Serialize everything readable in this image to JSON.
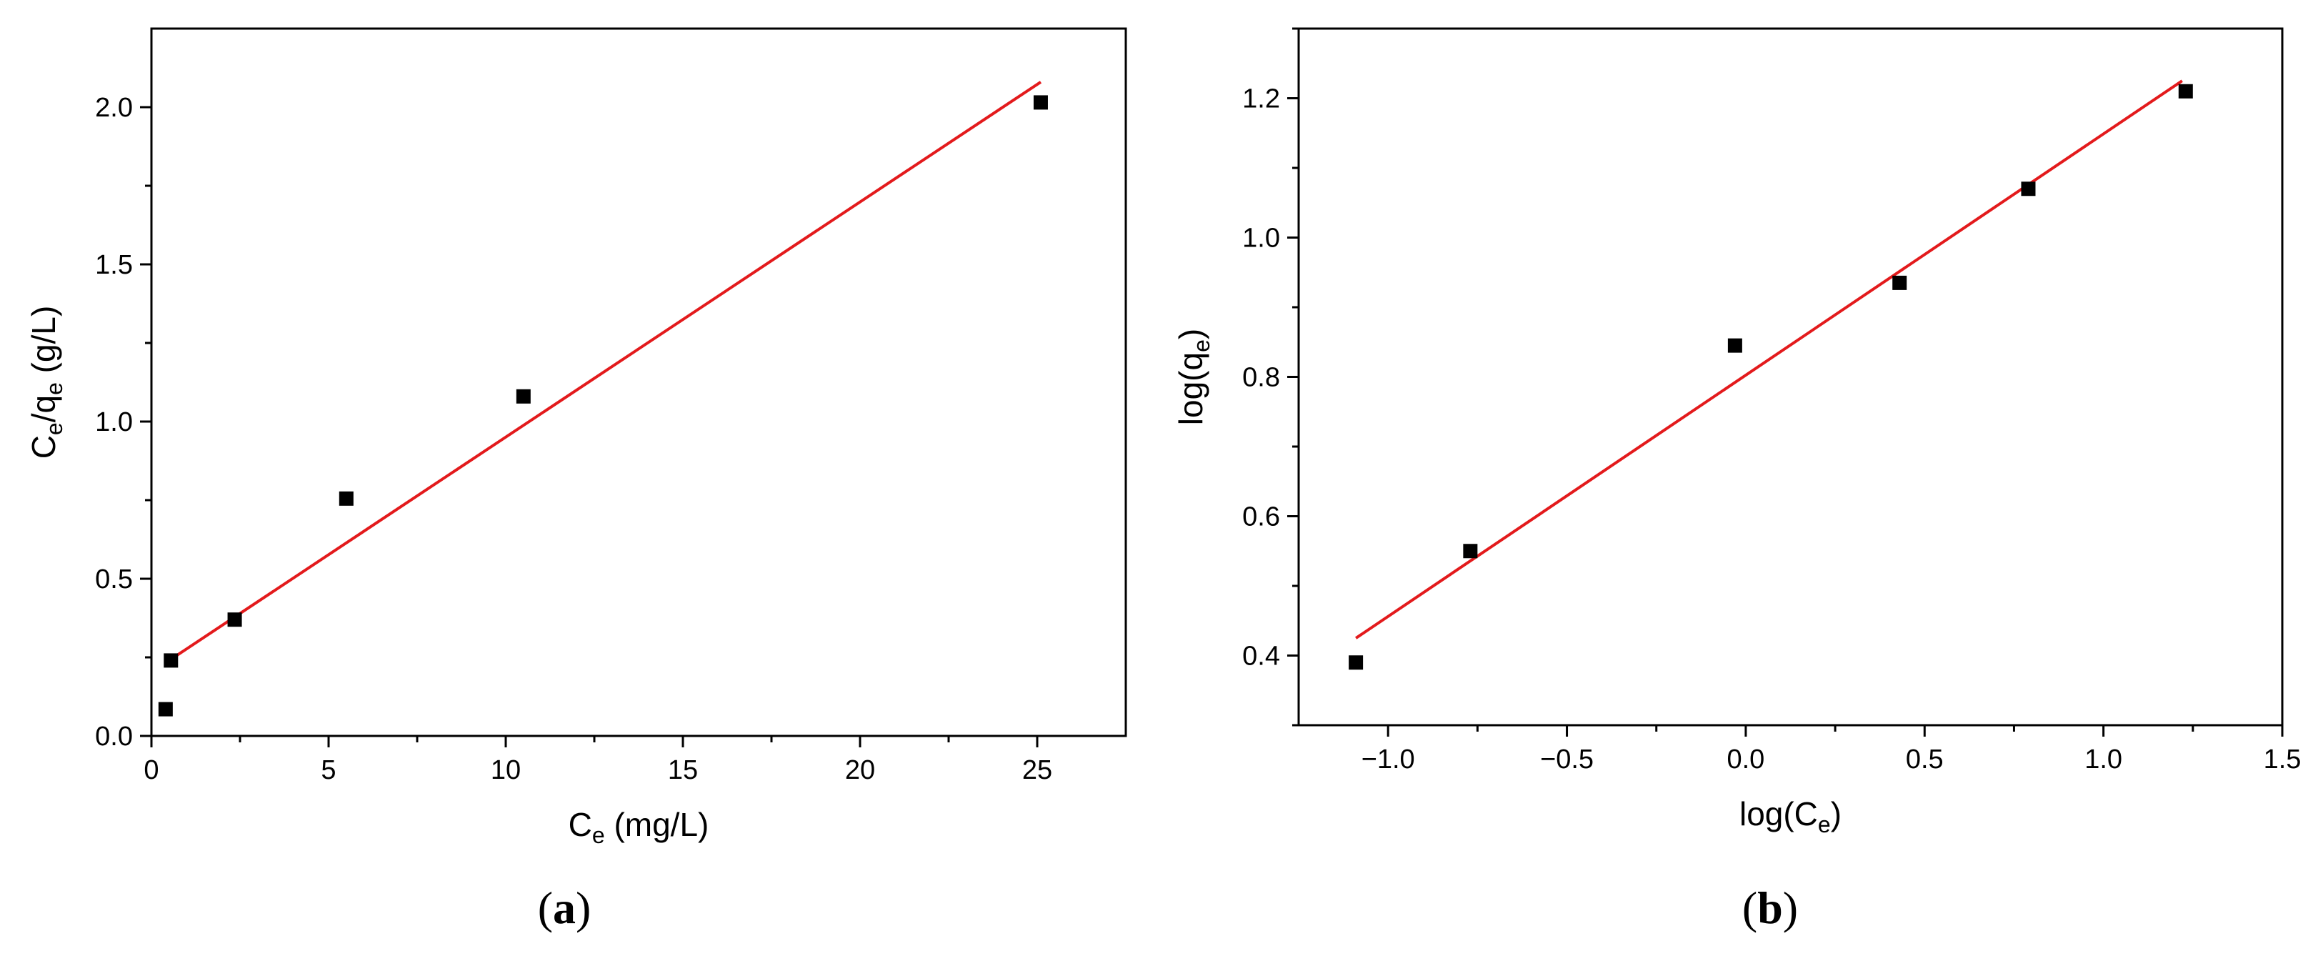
{
  "chart_data": [
    {
      "panel": "(a)",
      "panel_letter": "a",
      "type": "scatter",
      "xlabel": {
        "main": "C",
        "sub": "e",
        "rest": " (mg/L)"
      },
      "ylabel": {
        "p1": "C",
        "s1": "e",
        "p2": "/q",
        "s2": "e",
        "p3": " (g/L)"
      },
      "xlim": [
        0,
        27.5
      ],
      "ylim": [
        0,
        2.25
      ],
      "xticks": [
        0,
        5,
        10,
        15,
        20,
        25
      ],
      "yticks": [
        0.0,
        0.5,
        1.0,
        1.5,
        2.0
      ],
      "xtick_labels": [
        "0",
        "5",
        "10",
        "15",
        "20",
        "25"
      ],
      "ytick_labels": [
        "0.0",
        "0.5",
        "1.0",
        "1.5",
        "2.0"
      ],
      "series": [
        {
          "kind": "scatter",
          "marker": "square",
          "x": [
            0.4,
            0.55,
            2.35,
            5.5,
            10.5,
            25.1
          ],
          "y": [
            0.085,
            0.24,
            0.37,
            0.755,
            1.08,
            2.015
          ]
        },
        {
          "kind": "line",
          "color": "#e31a1c",
          "x": [
            0.5,
            25.1
          ],
          "y": [
            0.24,
            2.08
          ]
        }
      ],
      "grid": false
    },
    {
      "panel": "(b)",
      "panel_letter": "b",
      "type": "scatter",
      "xlabel": {
        "main": "log(C",
        "sub": "e",
        "rest": ")"
      },
      "ylabel": {
        "main": "log(q",
        "sub": "e",
        "rest": ")"
      },
      "xlim": [
        -1.25,
        1.5
      ],
      "ylim": [
        0.3,
        1.3
      ],
      "xticks": [
        -1.0,
        -0.5,
        0.0,
        0.5,
        1.0,
        1.5
      ],
      "yticks": [
        0.4,
        0.6,
        0.8,
        1.0,
        1.2
      ],
      "xtick_labels": [
        "−1.0",
        "−0.5",
        "0.0",
        "0.5",
        "1.0",
        "1.5"
      ],
      "ytick_labels": [
        "0.4",
        "0.6",
        "0.8",
        "1.0",
        "1.2"
      ],
      "series": [
        {
          "kind": "scatter",
          "marker": "square",
          "x": [
            -1.09,
            -0.77,
            -0.03,
            0.43,
            0.79,
            1.23
          ],
          "y": [
            0.39,
            0.55,
            0.845,
            0.935,
            1.07,
            1.21
          ]
        },
        {
          "kind": "line",
          "color": "#e31a1c",
          "x": [
            -1.09,
            1.22
          ],
          "y": [
            0.425,
            1.225
          ]
        }
      ],
      "grid": false
    }
  ]
}
